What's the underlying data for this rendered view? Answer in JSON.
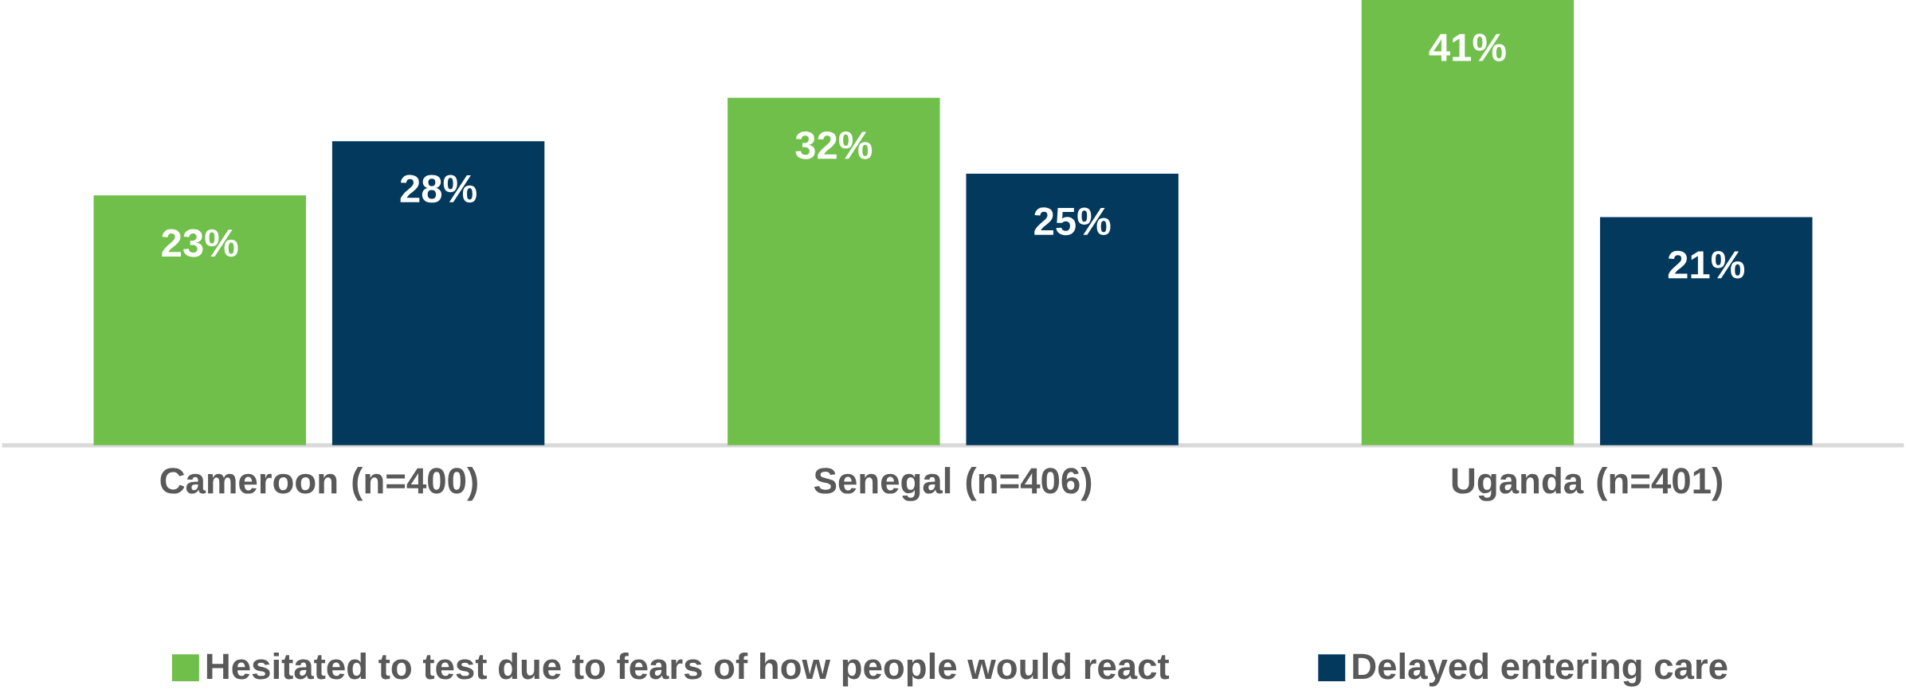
{
  "chart_data": {
    "type": "bar",
    "categories": [
      "Cameroon (n=400)",
      "Senegal (n=406)",
      "Uganda (n=401)"
    ],
    "series": [
      {
        "name": "Hesitated to test due to fears of how people would react",
        "color": "#6fbf4a",
        "values": [
          23,
          32,
          41
        ],
        "value_labels": [
          "23%",
          "32%",
          "41%"
        ]
      },
      {
        "name": "Delayed entering care",
        "color": "#03395c",
        "values": [
          28,
          25,
          21
        ],
        "value_labels": [
          "28%",
          "25%",
          "21%"
        ]
      }
    ],
    "legend": "bottom"
  }
}
